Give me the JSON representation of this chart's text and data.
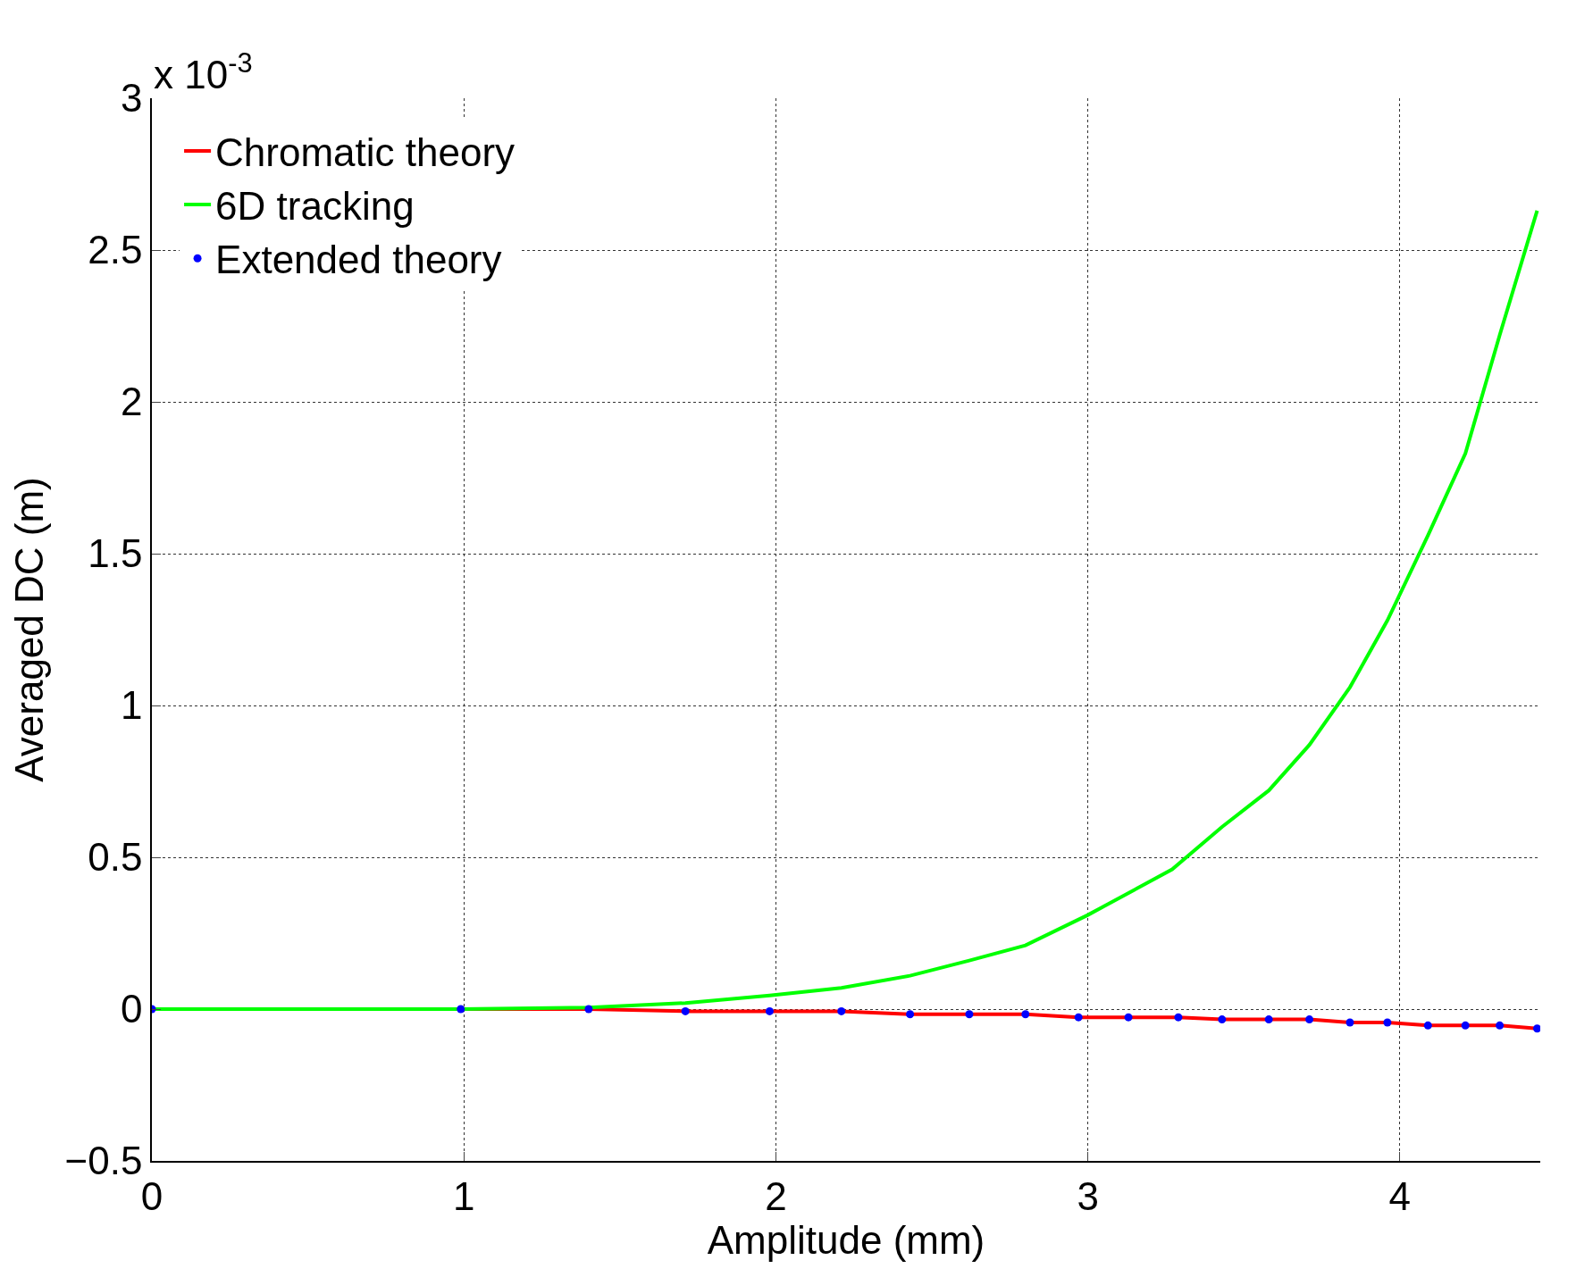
{
  "chart_data": {
    "type": "line",
    "xlabel": "Amplitude (mm)",
    "ylabel": "Averaged DC (m)",
    "annotations": [
      "x 10$^{-3}$"
    ],
    "xlim": [
      0,
      4.45
    ],
    "xticks": [
      0,
      1,
      2,
      3,
      4
    ],
    "ylim": [
      -0.5,
      3
    ],
    "yticks": [
      -0.5,
      0,
      0.5,
      1,
      1.5,
      2,
      2.5,
      3
    ],
    "grid": true,
    "legend": "top left",
    "line_style": "solid",
    "series": [
      {
        "name": "Chromatic theory",
        "color": "#ff0000",
        "marker": "none",
        "x": [
          0,
          0.99,
          1.4,
          1.71,
          1.98,
          2.21,
          2.43,
          2.62,
          2.8,
          2.97,
          3.13,
          3.29,
          3.43,
          3.58,
          3.71,
          3.84,
          3.96,
          4.09,
          4.21,
          4.32,
          4.44
        ],
        "values": [
          0,
          0,
          0,
          -0.007,
          -0.007,
          -0.007,
          -0.017,
          -0.017,
          -0.017,
          -0.027,
          -0.027,
          -0.027,
          -0.034,
          -0.034,
          -0.034,
          -0.044,
          -0.044,
          -0.054,
          -0.054,
          -0.054,
          -0.064
        ]
      },
      {
        "name": "6D tracking",
        "color": "#00ff00",
        "marker": "none",
        "x": [
          0,
          0.99,
          1.4,
          1.71,
          1.98,
          2.21,
          2.43,
          2.62,
          2.8,
          3.0,
          3.27,
          3.43,
          3.58,
          3.71,
          3.84,
          3.96,
          4.09,
          4.21,
          4.32,
          4.44
        ],
        "values": [
          0,
          0,
          0.005,
          0.02,
          0.045,
          0.07,
          0.11,
          0.16,
          0.21,
          0.31,
          0.46,
          0.6,
          0.72,
          0.87,
          1.06,
          1.28,
          1.56,
          1.83,
          2.22,
          2.63
        ]
      },
      {
        "name": "Extended theory",
        "color": "#0000ff",
        "type": "scatter",
        "marker": "circle",
        "x": [
          0,
          0.99,
          1.4,
          1.71,
          1.98,
          2.21,
          2.43,
          2.62,
          2.8,
          2.97,
          3.13,
          3.29,
          3.43,
          3.58,
          3.71,
          3.84,
          3.96,
          4.09,
          4.21,
          4.32,
          4.44
        ],
        "values": [
          0,
          0,
          0,
          -0.007,
          -0.007,
          -0.007,
          -0.017,
          -0.017,
          -0.017,
          -0.027,
          -0.027,
          -0.027,
          -0.034,
          -0.034,
          -0.034,
          -0.044,
          -0.044,
          -0.054,
          -0.054,
          -0.054,
          -0.064
        ]
      }
    ]
  }
}
